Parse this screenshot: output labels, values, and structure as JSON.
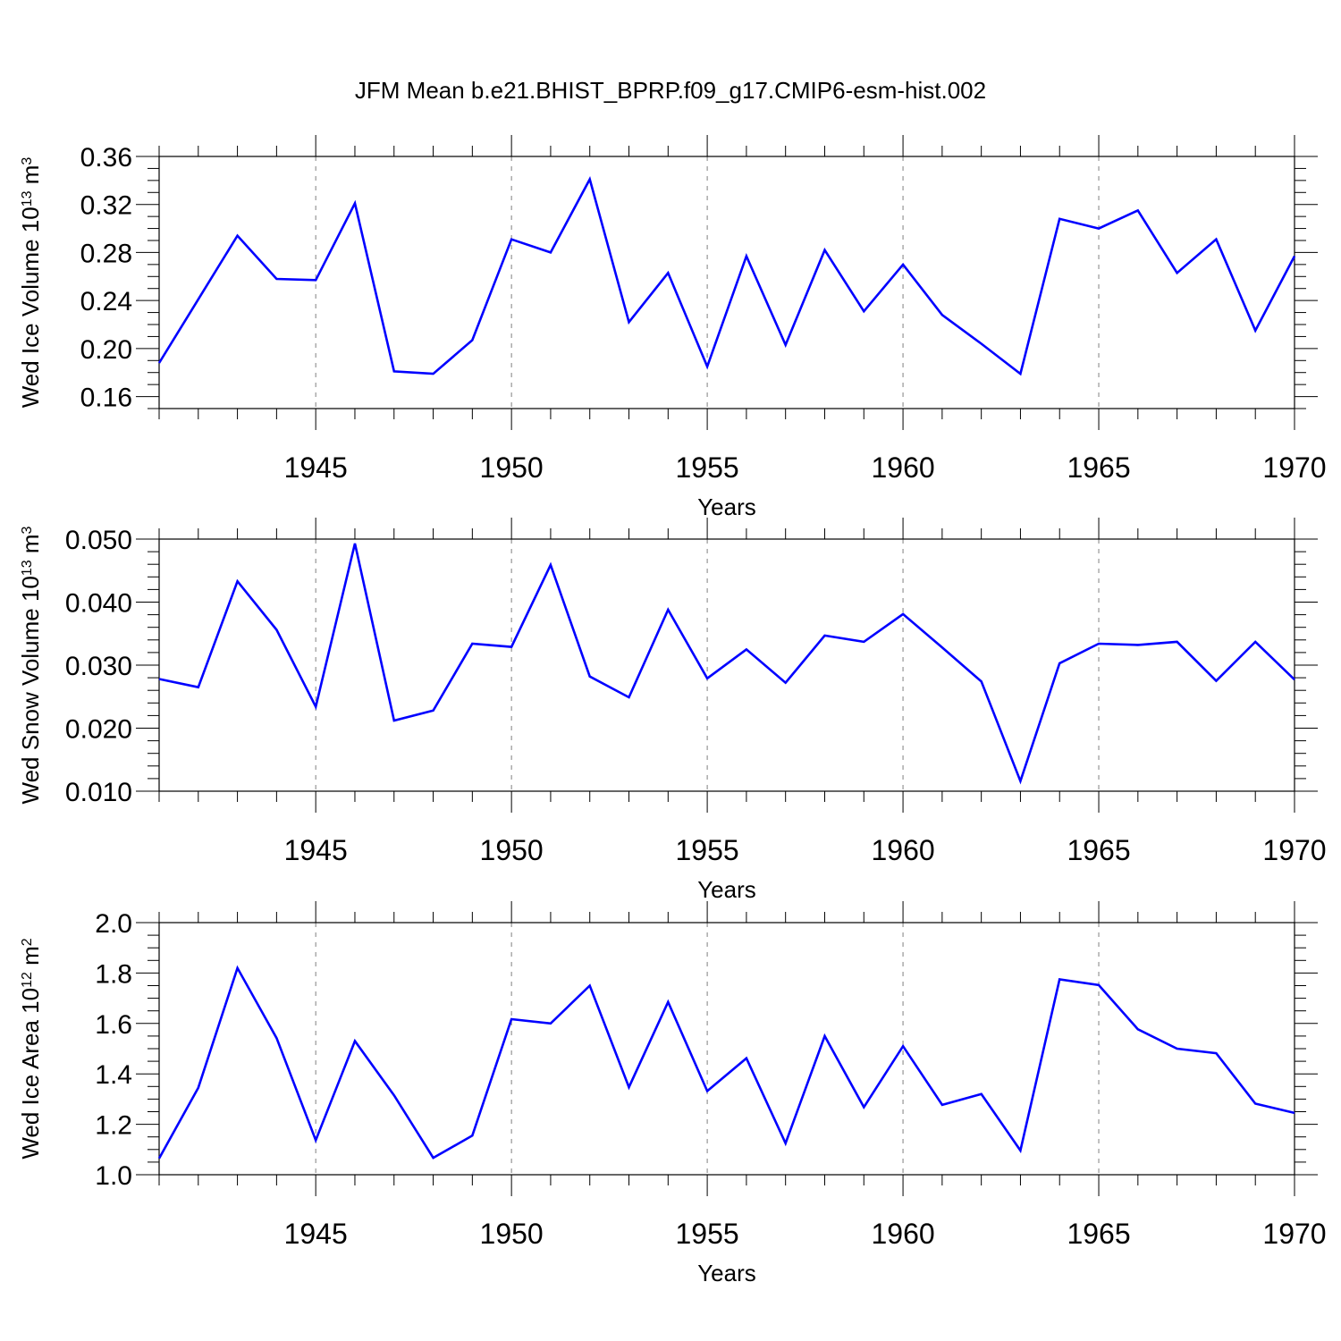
{
  "title": "JFM Mean b.e21.BHIST_BPRP.f09_g17.CMIP6-esm-hist.002",
  "colors": {
    "line": "#0000ff",
    "axis": "#000000",
    "grid": "#808080"
  },
  "chart_data": [
    {
      "type": "line",
      "ylabel": "Wed Ice Volume 10",
      "ylabel_exp": "13",
      "ylabel_unit": " m",
      "ylabel_unit_exp": "3",
      "xlabel": "Years",
      "xlim": [
        1941,
        1970
      ],
      "ylim": [
        0.15,
        0.36
      ],
      "yticks": [
        0.16,
        0.2,
        0.24,
        0.28,
        0.32,
        0.36
      ],
      "ytick_labels": [
        "0.16",
        "0.20",
        "0.24",
        "0.28",
        "0.32",
        "0.36"
      ],
      "yminor_step": 0.01,
      "xticks": [
        1945,
        1950,
        1955,
        1960,
        1965,
        1970
      ],
      "xtick_labels": [
        "1945",
        "1950",
        "1955",
        "1960",
        "1965",
        "1970"
      ],
      "grid": "vertical dashed at major x ticks",
      "x": [
        1941,
        1942,
        1943,
        1944,
        1945,
        1946,
        1947,
        1948,
        1949,
        1950,
        1951,
        1952,
        1953,
        1954,
        1955,
        1956,
        1957,
        1958,
        1959,
        1960,
        1961,
        1962,
        1963,
        1964,
        1965,
        1966,
        1967,
        1968,
        1969,
        1970
      ],
      "values": [
        0.188,
        0.241,
        0.294,
        0.258,
        0.257,
        0.321,
        0.181,
        0.179,
        0.207,
        0.291,
        0.28,
        0.341,
        0.222,
        0.263,
        0.185,
        0.277,
        0.203,
        0.282,
        0.231,
        0.27,
        0.228,
        0.204,
        0.179,
        0.308,
        0.3,
        0.315,
        0.263,
        0.291,
        0.215,
        0.277
      ]
    },
    {
      "type": "line",
      "ylabel": "Wed Snow Volume 10",
      "ylabel_exp": "13",
      "ylabel_unit": " m",
      "ylabel_unit_exp": "3",
      "xlabel": "Years",
      "xlim": [
        1941,
        1970
      ],
      "ylim": [
        0.01,
        0.05
      ],
      "yticks": [
        0.01,
        0.02,
        0.03,
        0.04,
        0.05
      ],
      "ytick_labels": [
        "0.010",
        "0.020",
        "0.030",
        "0.040",
        "0.050"
      ],
      "yminor_step": 0.002,
      "xticks": [
        1945,
        1950,
        1955,
        1960,
        1965,
        1970
      ],
      "xtick_labels": [
        "1945",
        "1950",
        "1955",
        "1960",
        "1965",
        "1970"
      ],
      "grid": "vertical dashed at major x ticks",
      "x": [
        1941,
        1942,
        1943,
        1944,
        1945,
        1946,
        1947,
        1948,
        1949,
        1950,
        1951,
        1952,
        1953,
        1954,
        1955,
        1956,
        1957,
        1958,
        1959,
        1960,
        1961,
        1962,
        1963,
        1964,
        1965,
        1966,
        1967,
        1968,
        1969,
        1970
      ],
      "values": [
        0.0278,
        0.0265,
        0.0433,
        0.0356,
        0.0234,
        0.0493,
        0.0212,
        0.0228,
        0.0334,
        0.0329,
        0.0459,
        0.0282,
        0.0249,
        0.0388,
        0.0279,
        0.0325,
        0.0272,
        0.0347,
        0.0337,
        0.0381,
        0.0328,
        0.0274,
        0.0116,
        0.0303,
        0.0334,
        0.0332,
        0.0337,
        0.0275,
        0.0337,
        0.0277
      ]
    },
    {
      "type": "line",
      "ylabel": "Wed Ice Area 10",
      "ylabel_exp": "12",
      "ylabel_unit": " m",
      "ylabel_unit_exp": "2",
      "xlabel": "Years",
      "xlim": [
        1941,
        1970
      ],
      "ylim": [
        1.0,
        2.0
      ],
      "yticks": [
        1.0,
        1.2,
        1.4,
        1.6,
        1.8,
        2.0
      ],
      "ytick_labels": [
        "1.0",
        "1.2",
        "1.4",
        "1.6",
        "1.8",
        "2.0"
      ],
      "yminor_step": 0.05,
      "xticks": [
        1945,
        1950,
        1955,
        1960,
        1965,
        1970
      ],
      "xtick_labels": [
        "1945",
        "1950",
        "1955",
        "1960",
        "1965",
        "1970"
      ],
      "grid": "vertical dashed at major x ticks",
      "x": [
        1941,
        1942,
        1943,
        1944,
        1945,
        1946,
        1947,
        1948,
        1949,
        1950,
        1951,
        1952,
        1953,
        1954,
        1955,
        1956,
        1957,
        1958,
        1959,
        1960,
        1961,
        1962,
        1963,
        1964,
        1965,
        1966,
        1967,
        1968,
        1969,
        1970
      ],
      "values": [
        1.065,
        1.345,
        1.82,
        1.542,
        1.137,
        1.53,
        1.315,
        1.067,
        1.155,
        1.617,
        1.6,
        1.75,
        1.347,
        1.685,
        1.332,
        1.462,
        1.125,
        1.55,
        1.268,
        1.51,
        1.277,
        1.32,
        1.096,
        1.775,
        1.752,
        1.577,
        1.5,
        1.482,
        1.282,
        1.245
      ]
    }
  ]
}
